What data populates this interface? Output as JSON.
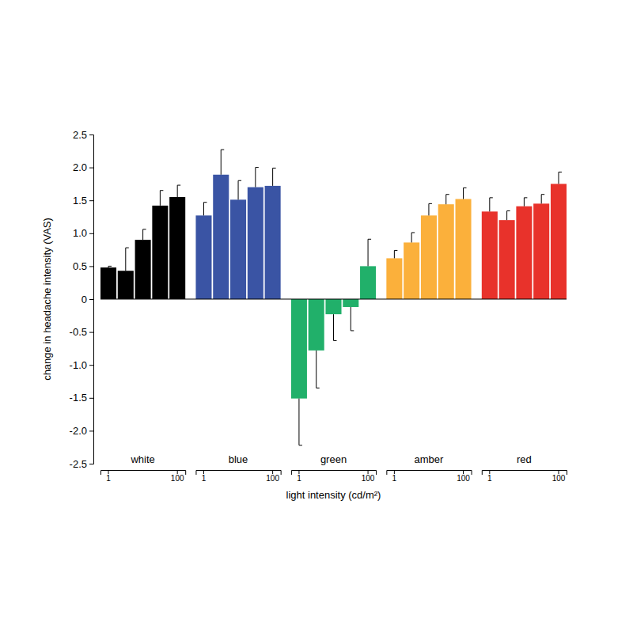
{
  "chart_data": {
    "type": "bar",
    "xlabel": "light intensity (cd/m²)",
    "ylabel": "change in headache intensity (VAS)",
    "categories": [
      "1",
      null,
      null,
      null,
      "100"
    ],
    "series": [
      {
        "name": "white",
        "color": "#000000",
        "values": [
          0.48,
          0.43,
          0.9,
          1.42,
          1.55
        ],
        "errors": [
          0.02,
          0.35,
          0.16,
          0.23,
          0.18
        ]
      },
      {
        "name": "blue",
        "color": "#3a54a4",
        "values": [
          1.27,
          1.89,
          1.51,
          1.7,
          1.72
        ],
        "errors": [
          0.2,
          0.38,
          0.29,
          0.3,
          0.27
        ]
      },
      {
        "name": "green",
        "color": "#21b06a",
        "values": [
          -1.51,
          -0.78,
          -0.23,
          -0.12,
          0.5
        ],
        "errors": [
          0.71,
          0.57,
          0.4,
          0.36,
          0.41
        ]
      },
      {
        "name": "amber",
        "color": "#fbb03b",
        "values": [
          0.62,
          0.86,
          1.27,
          1.44,
          1.52
        ],
        "errors": [
          0.12,
          0.15,
          0.18,
          0.15,
          0.17
        ]
      },
      {
        "name": "red",
        "color": "#e8322b",
        "values": [
          1.33,
          1.2,
          1.41,
          1.45,
          1.75
        ],
        "errors": [
          0.21,
          0.14,
          0.13,
          0.14,
          0.18
        ]
      }
    ],
    "ylim": [
      -2.5,
      2.5
    ],
    "yticks": [
      -2.5,
      {
        "value": -2,
        "label": "-2.0"
      },
      -1.5,
      {
        "value": -1,
        "label": "-1.0"
      },
      -0.5,
      0,
      0.5,
      {
        "value": 1,
        "label": "1.0"
      },
      1.5,
      {
        "value": 2,
        "label": "2.0"
      },
      2.5
    ],
    "grid": false
  }
}
